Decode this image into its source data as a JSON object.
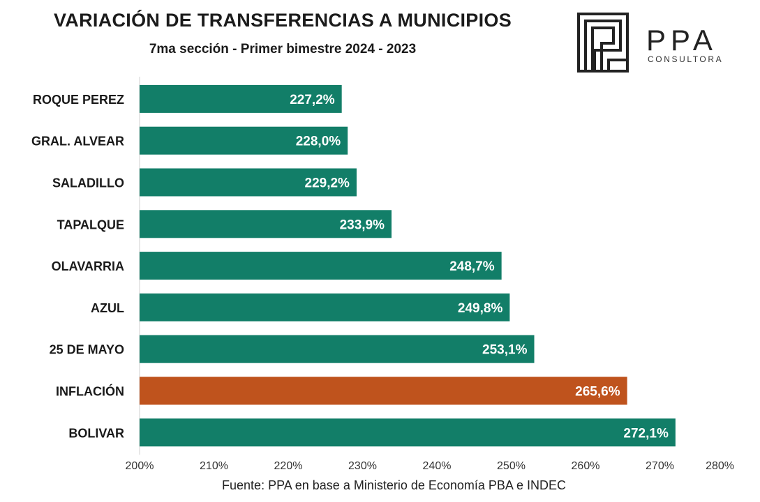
{
  "header": {
    "title": "VARIACIÓN DE TRANSFERENCIAS A MUNICIPIOS",
    "subtitle": "7ma sección -  Primer bimestre 2024 - 2023"
  },
  "logo": {
    "brand": "PPA",
    "tagline": "CONSULTORA"
  },
  "source": "Fuente: PPA en base a Ministerio de Economía PBA e INDEC",
  "chart_data": {
    "type": "bar",
    "orientation": "horizontal",
    "categories": [
      "ROQUE PEREZ",
      "GRAL. ALVEAR",
      "SALADILLO",
      "TAPALQUE",
      "OLAVARRIA",
      "AZUL",
      "25 DE MAYO",
      "INFLACIÓN",
      "BOLIVAR"
    ],
    "values": [
      227.2,
      228.0,
      229.2,
      233.9,
      248.7,
      249.8,
      253.1,
      265.6,
      272.1
    ],
    "value_labels": [
      "227,2%",
      "228,0%",
      "229,2%",
      "233,9%",
      "248,7%",
      "249,8%",
      "253,1%",
      "265,6%",
      "272,1%"
    ],
    "bar_colors": [
      "#127e68",
      "#127e68",
      "#127e68",
      "#127e68",
      "#127e68",
      "#127e68",
      "#127e68",
      "#bf531d",
      "#127e68"
    ],
    "xlim": [
      200,
      280
    ],
    "x_ticks": [
      "200%",
      "210%",
      "220%",
      "230%",
      "240%",
      "250%",
      "260%",
      "270%",
      "280%"
    ],
    "grid": false
  }
}
